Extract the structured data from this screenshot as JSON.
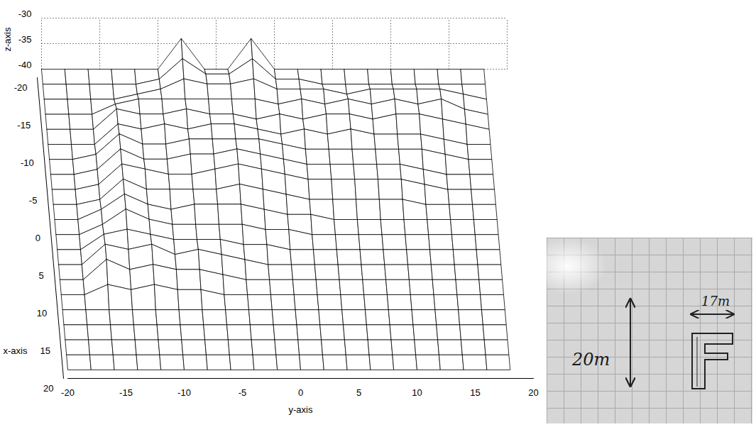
{
  "chart_data": {
    "type": "mesh",
    "xlabel": "x-axis",
    "ylabel": "y-axis",
    "zlabel": "z-axis",
    "xlim": [
      -20,
      20
    ],
    "ylim": [
      -20,
      20
    ],
    "zlim": [
      -40,
      -30
    ],
    "xticks": [
      -20,
      -15,
      -10,
      -5,
      0,
      5,
      10,
      15,
      20
    ],
    "yticks": [
      -20,
      -15,
      -10,
      -5,
      0,
      5,
      10,
      15,
      20
    ],
    "zticks": [
      -40,
      -35,
      -30
    ],
    "grid": true,
    "x": [
      -20,
      -18,
      -16,
      -14,
      -12,
      -10,
      -8,
      -6,
      -4,
      -2,
      0,
      2,
      4,
      6,
      8,
      10,
      12,
      14,
      16,
      18,
      20
    ],
    "y": [
      -20,
      -18,
      -16,
      -14,
      -12,
      -10,
      -8,
      -6,
      -4,
      -2,
      0,
      2,
      4,
      6,
      8,
      10,
      12,
      14,
      16,
      18
    ],
    "z": [
      [
        -40,
        -40,
        -40,
        -40,
        -40,
        -40,
        -34,
        -40,
        -40,
        -34,
        -40,
        -40,
        -40,
        -40,
        -40,
        -40,
        -40,
        -40,
        -40,
        -40
      ],
      [
        -40,
        -40,
        -40,
        -40,
        -40,
        -39,
        -35,
        -38,
        -38,
        -35,
        -39,
        -39,
        -40,
        -40,
        -40,
        -40,
        -40,
        -40,
        -40,
        -40
      ],
      [
        -40,
        -40,
        -40,
        -40,
        -39,
        -38,
        -36,
        -37,
        -37,
        -36,
        -38,
        -38,
        -38,
        -39,
        -38,
        -38,
        -38,
        -38,
        -39,
        -40
      ],
      [
        -40,
        -40,
        -40,
        -38,
        -37,
        -37,
        -37,
        -37,
        -37,
        -37,
        -38,
        -37,
        -38,
        -37,
        -38,
        -37,
        -38,
        -37,
        -39,
        -40
      ],
      [
        -40,
        -40,
        -40,
        -36,
        -37,
        -37,
        -36,
        -37,
        -37,
        -38,
        -37,
        -38,
        -37,
        -37,
        -38,
        -37,
        -37,
        -38,
        -39,
        -40
      ],
      [
        -40,
        -40,
        -40,
        -36,
        -37,
        -36,
        -37,
        -36,
        -36,
        -37,
        -38,
        -37,
        -38,
        -37,
        -38,
        -38,
        -38,
        -39,
        -40,
        -40
      ],
      [
        -40,
        -40,
        -39,
        -35,
        -37,
        -37,
        -36,
        -36,
        -36,
        -36,
        -37,
        -38,
        -38,
        -38,
        -38,
        -38,
        -38,
        -39,
        -40,
        -40
      ],
      [
        -40,
        -40,
        -39,
        -35,
        -37,
        -37,
        -36,
        -36,
        -35,
        -36,
        -37,
        -38,
        -38,
        -38,
        -38,
        -38,
        -39,
        -40,
        -40,
        -40
      ],
      [
        -40,
        -40,
        -39,
        -35,
        -36,
        -37,
        -37,
        -36,
        -35,
        -36,
        -37,
        -38,
        -38,
        -38,
        -38,
        -38,
        -39,
        -40,
        -40,
        -40
      ],
      [
        -40,
        -40,
        -39,
        -35,
        -37,
        -37,
        -37,
        -37,
        -36,
        -37,
        -38,
        -39,
        -39,
        -39,
        -39,
        -39,
        -40,
        -40,
        -40,
        -40
      ],
      [
        -40,
        -40,
        -38,
        -35,
        -37,
        -38,
        -37,
        -37,
        -37,
        -38,
        -39,
        -39,
        -40,
        -40,
        -40,
        -40,
        -40,
        -40,
        -40,
        -40
      ],
      [
        -40,
        -40,
        -38,
        -35,
        -37,
        -38,
        -38,
        -38,
        -38,
        -39,
        -39,
        -40,
        -40,
        -40,
        -40,
        -40,
        -40,
        -40,
        -40,
        -40
      ],
      [
        -40,
        -40,
        -37,
        -36,
        -37,
        -38,
        -38,
        -38,
        -39,
        -39,
        -40,
        -40,
        -40,
        -40,
        -40,
        -40,
        -40,
        -40,
        -40,
        -40
      ],
      [
        -40,
        -40,
        -36,
        -37,
        -36,
        -38,
        -37,
        -38,
        -39,
        -40,
        -40,
        -40,
        -40,
        -40,
        -40,
        -40,
        -40,
        -40,
        -40,
        -40
      ],
      [
        -40,
        -40,
        -36,
        -38,
        -37,
        -38,
        -38,
        -39,
        -40,
        -40,
        -40,
        -40,
        -40,
        -40,
        -40,
        -40,
        -40,
        -40,
        -40,
        -40
      ],
      [
        -40,
        -40,
        -38,
        -39,
        -38,
        -39,
        -39,
        -40,
        -40,
        -40,
        -40,
        -40,
        -40,
        -40,
        -40,
        -40,
        -40,
        -40,
        -40,
        -40
      ],
      [
        -40,
        -40,
        -40,
        -40,
        -40,
        -40,
        -40,
        -40,
        -40,
        -40,
        -40,
        -40,
        -40,
        -40,
        -40,
        -40,
        -40,
        -40,
        -40,
        -40
      ],
      [
        -40,
        -40,
        -40,
        -40,
        -40,
        -40,
        -40,
        -40,
        -40,
        -40,
        -40,
        -40,
        -40,
        -40,
        -40,
        -40,
        -40,
        -40,
        -40,
        -40
      ],
      [
        -40,
        -40,
        -40,
        -40,
        -40,
        -40,
        -40,
        -40,
        -40,
        -40,
        -40,
        -40,
        -40,
        -40,
        -40,
        -40,
        -40,
        -40,
        -40,
        -40
      ],
      [
        -40,
        -40,
        -40,
        -40,
        -40,
        -40,
        -40,
        -40,
        -40,
        -40,
        -40,
        -40,
        -40,
        -40,
        -40,
        -40,
        -40,
        -40,
        -40,
        -40
      ],
      [
        -40,
        -40,
        -40,
        -40,
        -40,
        -40,
        -40,
        -40,
        -40,
        -40,
        -40,
        -40,
        -40,
        -40,
        -40,
        -40,
        -40,
        -40,
        -40,
        -40
      ]
    ],
    "annotations": [
      {
        "text": "20m"
      },
      {
        "text": "17m"
      }
    ]
  }
}
